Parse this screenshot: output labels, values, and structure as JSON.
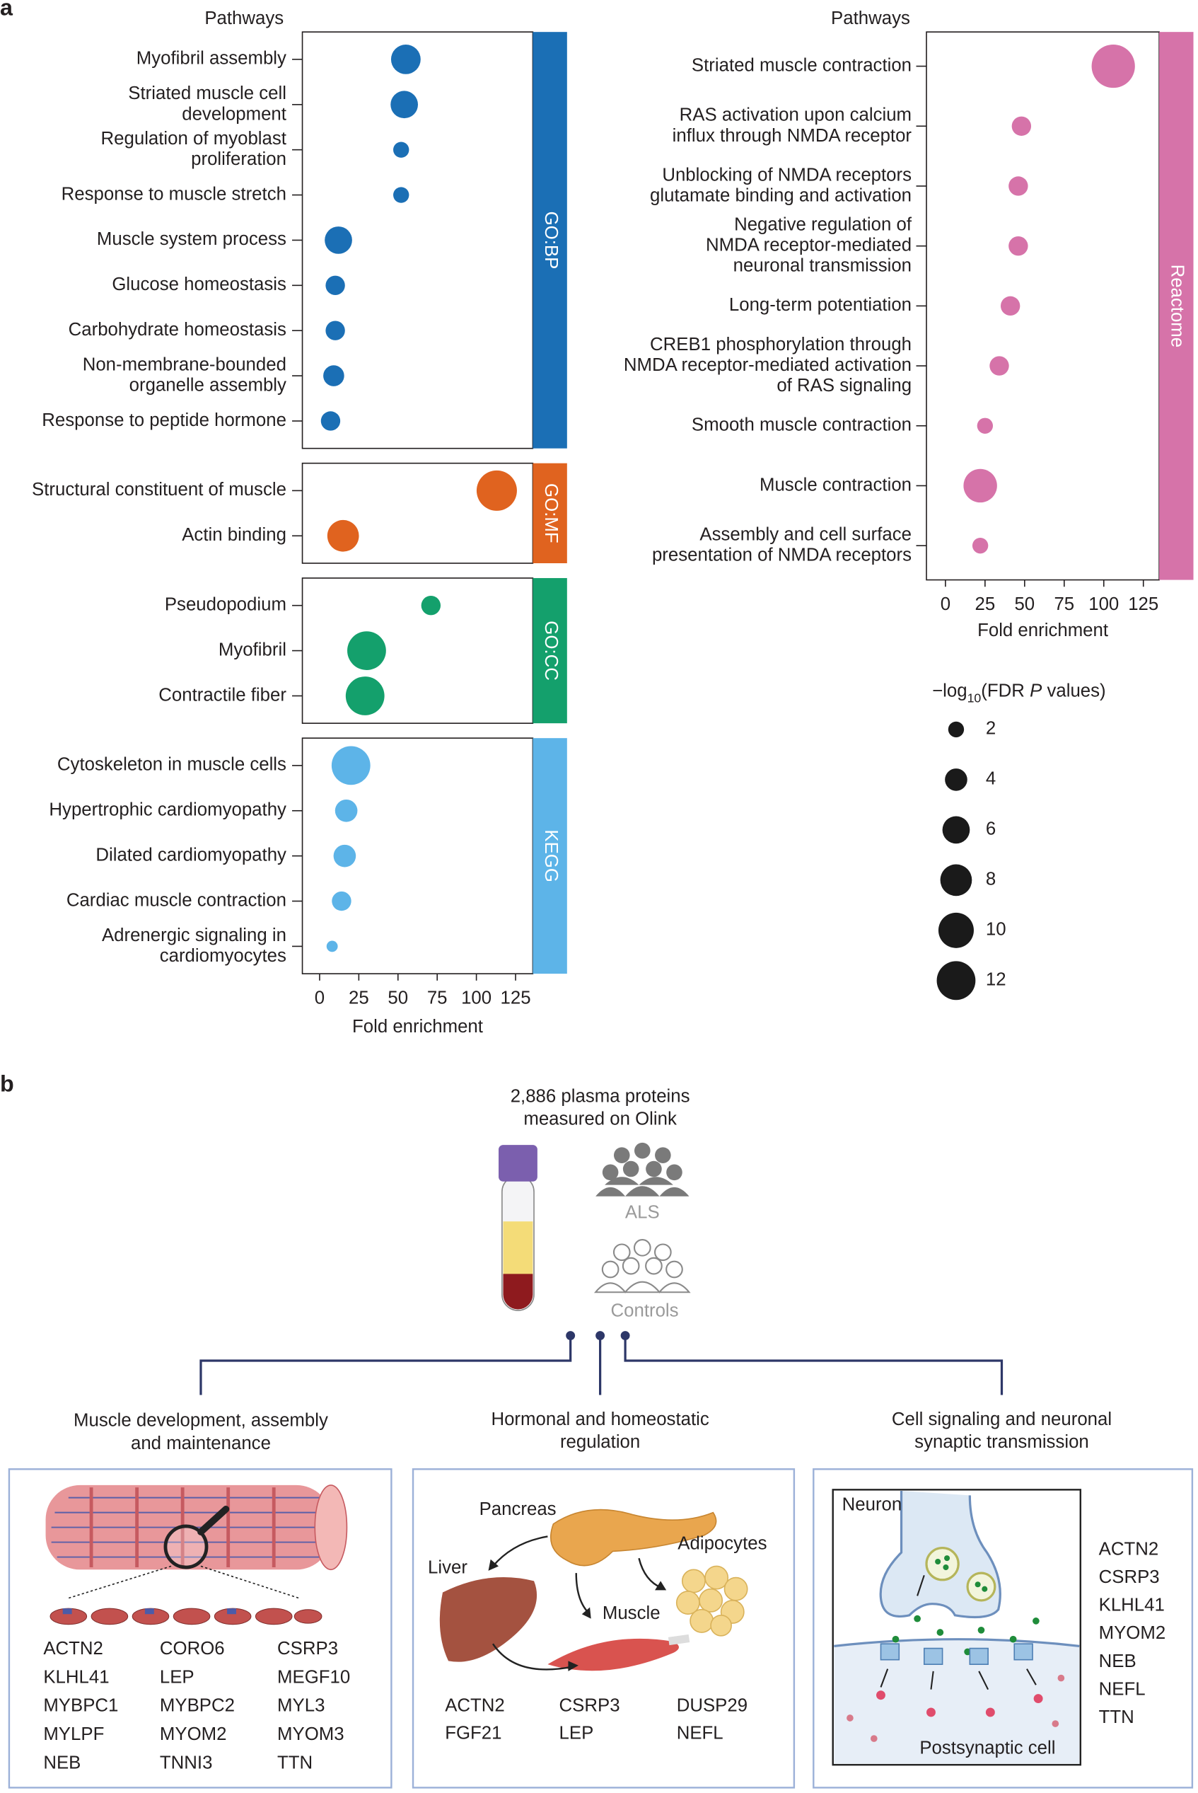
{
  "panel_labels": [
    "a",
    "b"
  ],
  "chart_data": [
    {
      "type": "dot",
      "y_label": "Pathways",
      "x_label": "Fold enrichment",
      "xlim": [
        -11,
        136
      ],
      "xticks": [
        0,
        25,
        50,
        75,
        100,
        125
      ],
      "facets": [
        {
          "name": "GO:BP",
          "color": "#1b6fb5",
          "categories": [
            "Myofibril assembly",
            "Striated muscle cell\ndevelopment",
            "Regulation of myoblast\nproliferation",
            "Response to muscle stretch",
            "Muscle system process",
            "Glucose homeostasis",
            "Carbohydrate homeostasis",
            "Non-membrane-bounded\norganelle assembly",
            "Response to peptide hormone"
          ],
          "values": [
            55,
            54,
            52,
            52,
            12,
            10,
            10,
            9,
            7
          ],
          "sizes": [
            7,
            6,
            2,
            2,
            6,
            3,
            3,
            3.5,
            3
          ]
        },
        {
          "name": "GO:MF",
          "color": "#e0631f",
          "categories": [
            "Structural constituent of muscle",
            "Actin binding"
          ],
          "values": [
            113,
            15
          ],
          "sizes": [
            13,
            8
          ]
        },
        {
          "name": "GO:CC",
          "color": "#14a06c",
          "categories": [
            "Pseudopodium",
            "Myofibril",
            "Contractile fiber"
          ],
          "values": [
            71,
            30,
            29
          ],
          "sizes": [
            3,
            12,
            12
          ]
        },
        {
          "name": "KEGG",
          "color": "#5db4e8",
          "categories": [
            "Cytoskeleton in muscle cells",
            "Hypertrophic cardiomyopathy",
            "Dilated cardiomyopathy",
            "Cardiac muscle contraction",
            "Adrenergic signaling in\ncardiomyocytes"
          ],
          "values": [
            20,
            17,
            16,
            14,
            8
          ],
          "sizes": [
            12,
            4,
            4,
            3,
            1
          ]
        }
      ]
    },
    {
      "type": "dot",
      "y_label": "Pathways",
      "x_label": "Fold enrichment",
      "xlim": [
        -12,
        135
      ],
      "xticks": [
        0,
        25,
        50,
        75,
        100,
        125
      ],
      "facets": [
        {
          "name": "Reactome",
          "color": "#d673a9",
          "categories": [
            "Striated muscle contraction",
            "RAS activation upon calcium\ninflux through NMDA receptor",
            "Unblocking of NMDA receptors\nglutamate binding and activation",
            "Negative regulation of\nNMDA receptor-mediated\nneuronal transmission",
            "Long-term potentiation",
            "CREB1 phosphorylation through\nNMDA receptor-mediated activation\nof RAS signaling",
            "Smooth muscle contraction",
            "Muscle contraction",
            "Assembly and cell surface\npresentation of NMDA receptors"
          ],
          "values": [
            106,
            48,
            46,
            46,
            41,
            34,
            25,
            22,
            22
          ],
          "sizes": [
            15,
            3,
            3,
            3,
            3,
            3,
            2,
            9,
            2
          ]
        }
      ],
      "size_legend": {
        "title": [
          "−log",
          "10",
          "(FDR ",
          "P",
          " values)"
        ],
        "sizes": [
          2,
          4,
          6,
          8,
          10,
          12
        ],
        "color": "#1a1a1a"
      }
    }
  ],
  "diagram": {
    "source": {
      "title": "2,886 plasma proteins\nmeasured on Olink",
      "groups": [
        "ALS",
        "Controls"
      ]
    },
    "panels": [
      {
        "title": "Muscle development, assembly\nand maintenance",
        "labels": [],
        "genes": [
          "ACTN2",
          "CORO6",
          "CSRP3",
          "KLHL41",
          "LEP",
          "MEGF10",
          "MYBPC1",
          "MYBPC2",
          "MYL3",
          "MYLPF",
          "MYOM2",
          "MYOM3",
          "NEB",
          "TNNI3",
          "TTN"
        ]
      },
      {
        "title": "Hormonal and homeostatic\nregulation",
        "labels": [
          "Pancreas",
          "Liver",
          "Adipocytes",
          "Muscle"
        ],
        "genes": [
          "ACTN2",
          "CSRP3",
          "DUSP29",
          "FGF21",
          "LEP",
          "NEFL"
        ]
      },
      {
        "title": "Cell signaling and neuronal\nsynaptic transmission",
        "labels": [
          "Neuron",
          "Postsynaptic cell"
        ],
        "genes": [
          "ACTN2",
          "CSRP3",
          "KLHL41",
          "MYOM2",
          "NEB",
          "NEFL",
          "TTN"
        ]
      }
    ]
  }
}
